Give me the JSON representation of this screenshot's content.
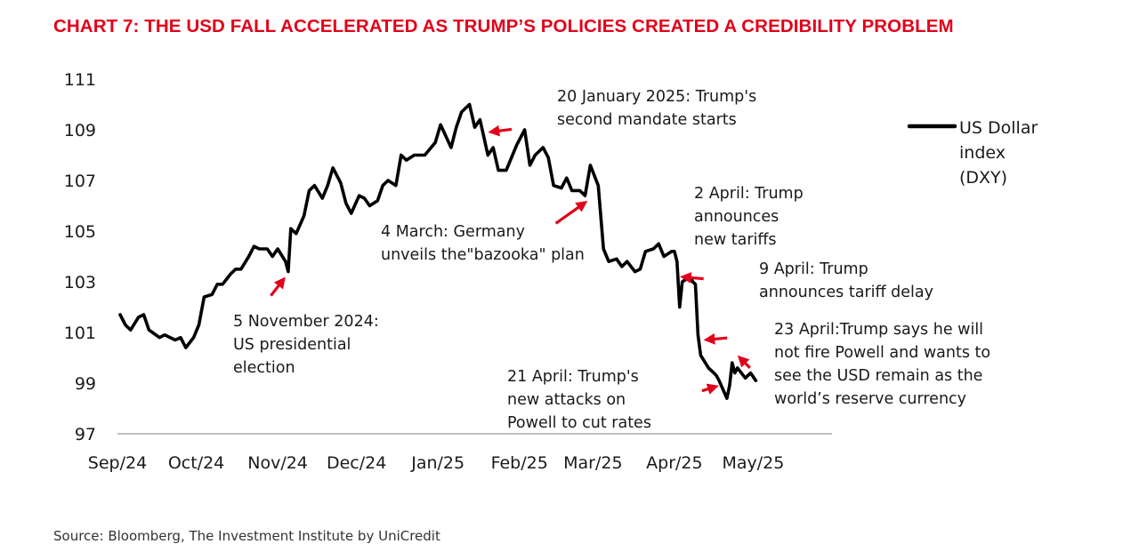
{
  "title": "CHART 7: THE USD FALL ACCELERATED AS TRUMP’S POLICIES CREATED A CREDIBILITY PROBLEM",
  "source": "Source: Bloomberg, The Investment Institute by UniCredit",
  "colors": {
    "title": "#e2001a",
    "series": "#000000",
    "arrow": "#e2001a",
    "axis": "#9a9a9a"
  },
  "chart_data": {
    "type": "line",
    "title": "CHART 7: THE USD FALL ACCELERATED AS TRUMP’S POLICIES CREATED A CREDIBILITY PROBLEM",
    "xlabel": "",
    "ylabel": "",
    "ylim": [
      97,
      111
    ],
    "yticks": [
      97,
      99,
      101,
      103,
      105,
      107,
      109,
      111
    ],
    "xlim": [
      "2024-09-01",
      "2025-05-31"
    ],
    "xticks": [
      {
        "date": "2024-09-01",
        "label": "Sep/24"
      },
      {
        "date": "2024-10-01",
        "label": "Oct/24"
      },
      {
        "date": "2024-11-01",
        "label": "Nov/24"
      },
      {
        "date": "2024-12-01",
        "label": "Dec/24"
      },
      {
        "date": "2025-01-01",
        "label": "Jan/25"
      },
      {
        "date": "2025-02-01",
        "label": "Feb/25"
      },
      {
        "date": "2025-03-01",
        "label": "Mar/25"
      },
      {
        "date": "2025-04-01",
        "label": "Apr/25"
      },
      {
        "date": "2025-05-01",
        "label": "May/25"
      }
    ],
    "grid": false,
    "legend_position": "right",
    "series": [
      {
        "name": "US Dollar index (DXY)",
        "points": [
          [
            "2024-09-02",
            101.7
          ],
          [
            "2024-09-04",
            101.3
          ],
          [
            "2024-09-06",
            101.1
          ],
          [
            "2024-09-09",
            101.6
          ],
          [
            "2024-09-11",
            101.7
          ],
          [
            "2024-09-13",
            101.1
          ],
          [
            "2024-09-17",
            100.8
          ],
          [
            "2024-09-19",
            100.9
          ],
          [
            "2024-09-23",
            100.7
          ],
          [
            "2024-09-25",
            100.8
          ],
          [
            "2024-09-27",
            100.4
          ],
          [
            "2024-09-30",
            100.8
          ],
          [
            "2024-10-02",
            101.3
          ],
          [
            "2024-10-04",
            102.4
          ],
          [
            "2024-10-07",
            102.5
          ],
          [
            "2024-10-09",
            102.9
          ],
          [
            "2024-10-11",
            102.9
          ],
          [
            "2024-10-14",
            103.3
          ],
          [
            "2024-10-16",
            103.5
          ],
          [
            "2024-10-18",
            103.5
          ],
          [
            "2024-10-21",
            104.0
          ],
          [
            "2024-10-23",
            104.4
          ],
          [
            "2024-10-25",
            104.3
          ],
          [
            "2024-10-28",
            104.3
          ],
          [
            "2024-10-30",
            104.0
          ],
          [
            "2024-11-01",
            104.3
          ],
          [
            "2024-11-04",
            103.8
          ],
          [
            "2024-11-05",
            103.4
          ],
          [
            "2024-11-06",
            105.1
          ],
          [
            "2024-11-08",
            104.9
          ],
          [
            "2024-11-11",
            105.6
          ],
          [
            "2024-11-13",
            106.6
          ],
          [
            "2024-11-15",
            106.8
          ],
          [
            "2024-11-18",
            106.3
          ],
          [
            "2024-11-20",
            106.8
          ],
          [
            "2024-11-22",
            107.5
          ],
          [
            "2024-11-25",
            106.9
          ],
          [
            "2024-11-27",
            106.1
          ],
          [
            "2024-11-29",
            105.7
          ],
          [
            "2024-12-02",
            106.4
          ],
          [
            "2024-12-04",
            106.3
          ],
          [
            "2024-12-06",
            106.0
          ],
          [
            "2024-12-09",
            106.2
          ],
          [
            "2024-12-11",
            106.8
          ],
          [
            "2024-12-13",
            107.0
          ],
          [
            "2024-12-16",
            106.8
          ],
          [
            "2024-12-18",
            108.0
          ],
          [
            "2024-12-20",
            107.8
          ],
          [
            "2024-12-23",
            108.0
          ],
          [
            "2024-12-27",
            108.0
          ],
          [
            "2024-12-31",
            108.5
          ],
          [
            "2025-01-02",
            109.2
          ],
          [
            "2025-01-06",
            108.3
          ],
          [
            "2025-01-08",
            109.1
          ],
          [
            "2025-01-10",
            109.7
          ],
          [
            "2025-01-13",
            110.0
          ],
          [
            "2025-01-15",
            109.1
          ],
          [
            "2025-01-17",
            109.4
          ],
          [
            "2025-01-20",
            108.0
          ],
          [
            "2025-01-22",
            108.3
          ],
          [
            "2025-01-24",
            107.4
          ],
          [
            "2025-01-27",
            107.4
          ],
          [
            "2025-01-29",
            107.9
          ],
          [
            "2025-01-31",
            108.4
          ],
          [
            "2025-02-03",
            109.0
          ],
          [
            "2025-02-05",
            107.6
          ],
          [
            "2025-02-07",
            108.0
          ],
          [
            "2025-02-10",
            108.3
          ],
          [
            "2025-02-12",
            107.9
          ],
          [
            "2025-02-14",
            106.8
          ],
          [
            "2025-02-17",
            106.7
          ],
          [
            "2025-02-19",
            107.1
          ],
          [
            "2025-02-21",
            106.6
          ],
          [
            "2025-02-24",
            106.6
          ],
          [
            "2025-02-26",
            106.4
          ],
          [
            "2025-02-28",
            107.6
          ],
          [
            "2025-03-03",
            106.8
          ],
          [
            "2025-03-05",
            104.3
          ],
          [
            "2025-03-07",
            103.8
          ],
          [
            "2025-03-10",
            103.9
          ],
          [
            "2025-03-12",
            103.6
          ],
          [
            "2025-03-14",
            103.8
          ],
          [
            "2025-03-17",
            103.4
          ],
          [
            "2025-03-19",
            103.5
          ],
          [
            "2025-03-21",
            104.2
          ],
          [
            "2025-03-24",
            104.3
          ],
          [
            "2025-03-26",
            104.5
          ],
          [
            "2025-03-28",
            104.0
          ],
          [
            "2025-03-31",
            104.2
          ],
          [
            "2025-04-01",
            104.2
          ],
          [
            "2025-04-02",
            103.8
          ],
          [
            "2025-04-03",
            102.0
          ],
          [
            "2025-04-04",
            103.0
          ],
          [
            "2025-04-07",
            103.2
          ],
          [
            "2025-04-08",
            103.0
          ],
          [
            "2025-04-09",
            102.9
          ],
          [
            "2025-04-10",
            100.9
          ],
          [
            "2025-04-11",
            100.1
          ],
          [
            "2025-04-14",
            99.6
          ],
          [
            "2025-04-16",
            99.4
          ],
          [
            "2025-04-17",
            99.3
          ],
          [
            "2025-04-18",
            99.1
          ],
          [
            "2025-04-21",
            98.4
          ],
          [
            "2025-04-22",
            98.9
          ],
          [
            "2025-04-23",
            99.8
          ],
          [
            "2025-04-24",
            99.4
          ],
          [
            "2025-04-25",
            99.6
          ],
          [
            "2025-04-28",
            99.2
          ],
          [
            "2025-04-30",
            99.4
          ],
          [
            "2025-05-02",
            99.1
          ]
        ]
      }
    ],
    "annotations": [
      {
        "lines": [
          "20 January 2025: Trump's",
          "second mandate starts"
        ],
        "arrow": [
          "2025-01-20",
          108.9
        ]
      },
      {
        "lines": [
          "4 March: Germany",
          "unveils the\"bazooka\" plan"
        ],
        "arrow": [
          "2025-02-27",
          106.2
        ]
      },
      {
        "lines": [
          "2 April: Trump",
          "announces",
          "new tariffs"
        ],
        "arrow": [
          "2025-04-03",
          103.2
        ]
      },
      {
        "lines": [
          "9 April: Trump",
          "announces tariff delay"
        ],
        "arrow": [
          "2025-04-12",
          100.7
        ]
      },
      {
        "lines": [
          "23 April:Trump  says he will",
          "not fire Powell and wants to",
          "see the USD remain as the",
          "world’s reserve currency"
        ],
        "arrow": [
          "2025-04-25",
          100.1
        ]
      },
      {
        "lines": [
          "21 April: Trump's",
          "new attacks on",
          "Powell to cut rates"
        ],
        "arrow": [
          "2025-04-18",
          98.9
        ]
      },
      {
        "lines": [
          "5 November 2024:",
          "US presidential",
          "election"
        ],
        "arrow": [
          "2024-11-04",
          103.2
        ]
      }
    ]
  }
}
